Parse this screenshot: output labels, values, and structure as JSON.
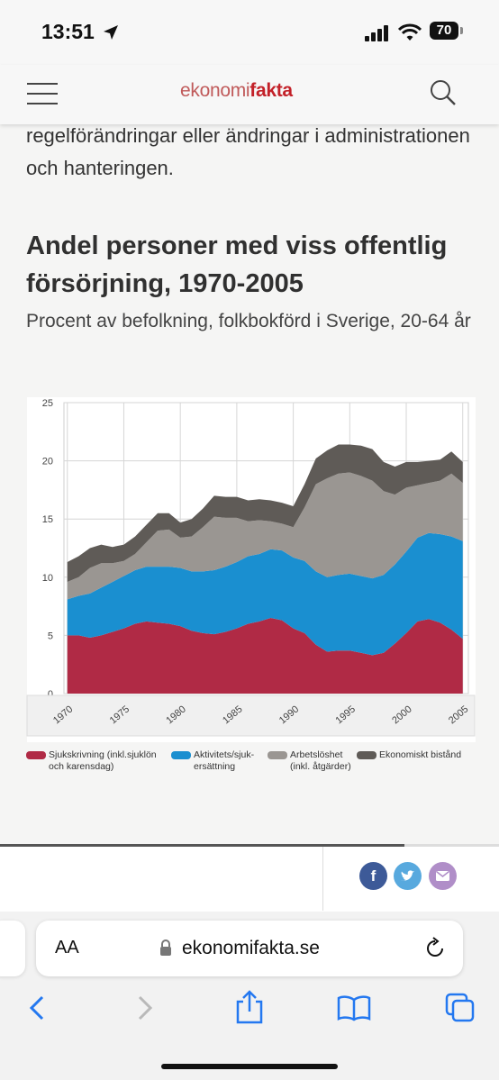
{
  "status_bar": {
    "time": "13:51",
    "battery": "70"
  },
  "header": {
    "logo_regular": "ekonomi",
    "logo_bold": "fakta"
  },
  "article": {
    "body_text": "regelförändringar eller ändringar i administrationen och hanteringen.",
    "chart_title": "Andel personer med viss offentlig försörjning, 1970-2005",
    "chart_subtitle": "Procent av befolkning, folkbokförd i Sverige, 20-64 år"
  },
  "legend": [
    {
      "label": "Sjukskrivning (inkl.sjuklön\noch karensdag)",
      "color": "#b02a45"
    },
    {
      "label": "Aktivitets/sjuk-\nersättning",
      "color": "#1a8fd0"
    },
    {
      "label": "Arbetslöshet\n(inkl. åtgärder)",
      "color": "#9a9692"
    },
    {
      "label": "Ekonomiskt bistånd",
      "color": "#5f5b57"
    }
  ],
  "chart_data": {
    "type": "area",
    "stacked": true,
    "x": [
      1970,
      1971,
      1972,
      1973,
      1974,
      1975,
      1976,
      1977,
      1978,
      1979,
      1980,
      1981,
      1982,
      1983,
      1984,
      1985,
      1986,
      1987,
      1988,
      1989,
      1990,
      1991,
      1992,
      1993,
      1994,
      1995,
      1996,
      1997,
      1998,
      1999,
      2000,
      2001,
      2002,
      2003,
      2004,
      2005
    ],
    "x_tick_labels": [
      "1970",
      "1975",
      "1980",
      "1985",
      "1990",
      "1995",
      "2000",
      "2005"
    ],
    "ylim": [
      0,
      25
    ],
    "y_ticks": [
      0,
      5,
      10,
      15,
      20,
      25
    ],
    "grid": true,
    "legend_position": "bottom",
    "series": [
      {
        "name": "Sjukskrivning (inkl.sjuklön och karensdag)",
        "color": "#b02a45",
        "values": [
          5.0,
          5.0,
          4.8,
          5.0,
          5.3,
          5.6,
          6.0,
          6.2,
          6.1,
          6.0,
          5.8,
          5.4,
          5.2,
          5.1,
          5.3,
          5.6,
          6.0,
          6.2,
          6.5,
          6.3,
          5.6,
          5.2,
          4.2,
          3.6,
          3.7,
          3.7,
          3.5,
          3.3,
          3.5,
          4.3,
          5.2,
          6.2,
          6.4,
          6.1,
          5.5,
          4.7
        ]
      },
      {
        "name": "Aktivitets/sjuk-ersättning",
        "color": "#1a8fd0",
        "values": [
          3.1,
          3.4,
          3.8,
          4.1,
          4.3,
          4.5,
          4.6,
          4.7,
          4.8,
          4.9,
          5.0,
          5.1,
          5.3,
          5.5,
          5.6,
          5.7,
          5.8,
          5.8,
          5.9,
          6.0,
          6.1,
          6.2,
          6.3,
          6.4,
          6.5,
          6.6,
          6.6,
          6.6,
          6.7,
          6.8,
          7.0,
          7.2,
          7.4,
          7.6,
          8.0,
          8.4
        ]
      },
      {
        "name": "Arbetslöshet (inkl. åtgärder)",
        "color": "#9a9692",
        "values": [
          1.5,
          1.6,
          2.2,
          2.1,
          1.6,
          1.3,
          1.4,
          2.1,
          3.1,
          3.2,
          2.6,
          3.0,
          3.8,
          4.6,
          4.2,
          3.8,
          3.0,
          2.9,
          2.4,
          2.3,
          2.6,
          4.6,
          7.5,
          8.5,
          8.7,
          8.7,
          8.6,
          8.4,
          7.2,
          6.0,
          5.5,
          4.5,
          4.3,
          4.6,
          5.4,
          5.0
        ]
      },
      {
        "name": "Ekonomiskt bistånd",
        "color": "#5f5b57",
        "values": [
          1.7,
          1.8,
          1.7,
          1.6,
          1.4,
          1.4,
          1.5,
          1.5,
          1.5,
          1.4,
          1.3,
          1.5,
          1.6,
          1.8,
          1.8,
          1.8,
          1.8,
          1.8,
          1.8,
          1.8,
          1.8,
          2.0,
          2.2,
          2.4,
          2.5,
          2.4,
          2.6,
          2.7,
          2.5,
          2.4,
          2.2,
          2.0,
          1.9,
          1.8,
          1.9,
          1.8
        ]
      }
    ]
  },
  "browser": {
    "text_size_label": "AA",
    "url": "ekonomifakta.se"
  },
  "share": {
    "progress": 0.81
  }
}
